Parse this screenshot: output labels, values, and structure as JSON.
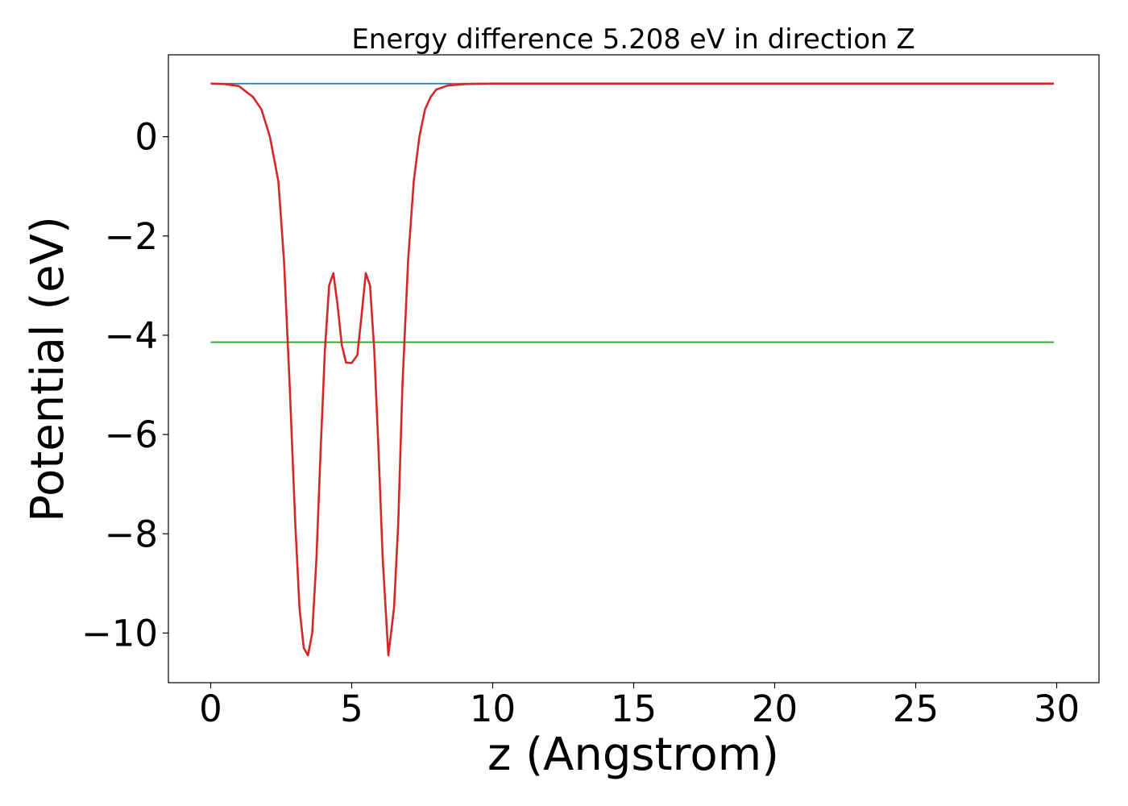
{
  "chart_data": {
    "type": "line",
    "title": "Energy difference 5.208 eV in direction Z",
    "xlabel": "z (Angstrom)",
    "ylabel": "Potential (eV)",
    "xlim": [
      -1.5,
      31.5
    ],
    "ylim": [
      -11.0,
      1.65
    ],
    "grid": false,
    "xticks": [
      0,
      5,
      10,
      15,
      20,
      25,
      30
    ],
    "xtick_labels": [
      "0",
      "5",
      "10",
      "15",
      "20",
      "25",
      "30"
    ],
    "yticks": [
      -10,
      -8,
      -6,
      -4,
      -2,
      0
    ],
    "ytick_labels": [
      "−10",
      "−8",
      "−6",
      "−4",
      "−2",
      "0"
    ],
    "series": [
      {
        "color": "#1f77b4",
        "x": [
          0,
          29.9
        ],
        "y": [
          1.07,
          1.07
        ]
      },
      {
        "color": "#2ca02c",
        "x": [
          0,
          29.9
        ],
        "y": [
          -4.14,
          -4.14
        ]
      },
      {
        "color": "#9467bd",
        "x": [
          8.5,
          29.9
        ],
        "y": [
          1.07,
          1.07
        ]
      },
      {
        "color": "#d62728",
        "x": [
          0,
          0.5,
          1.0,
          1.5,
          1.8,
          2.1,
          2.4,
          2.6,
          2.8,
          3.0,
          3.15,
          3.3,
          3.45,
          3.6,
          3.75,
          3.9,
          4.05,
          4.2,
          4.35,
          4.5,
          4.65,
          4.8,
          5.0,
          5.2,
          5.35,
          5.5,
          5.65,
          5.8,
          5.95,
          6.1,
          6.3,
          6.5,
          6.65,
          6.8,
          7.0,
          7.2,
          7.4,
          7.6,
          7.8,
          8.0,
          8.4,
          9.0,
          10.0,
          15.0,
          20.0,
          25.0,
          29.9
        ],
        "y": [
          1.07,
          1.06,
          1.02,
          0.8,
          0.55,
          0.0,
          -0.9,
          -2.5,
          -5.0,
          -7.8,
          -9.5,
          -10.3,
          -10.45,
          -10.0,
          -8.5,
          -6.3,
          -4.3,
          -3.0,
          -2.75,
          -3.4,
          -4.2,
          -4.55,
          -4.56,
          -4.4,
          -3.6,
          -2.75,
          -3.0,
          -4.3,
          -6.3,
          -8.5,
          -10.45,
          -9.5,
          -7.8,
          -5.0,
          -2.5,
          -0.9,
          0.0,
          0.55,
          0.8,
          0.95,
          1.03,
          1.06,
          1.07,
          1.07,
          1.07,
          1.07,
          1.07
        ]
      }
    ]
  }
}
